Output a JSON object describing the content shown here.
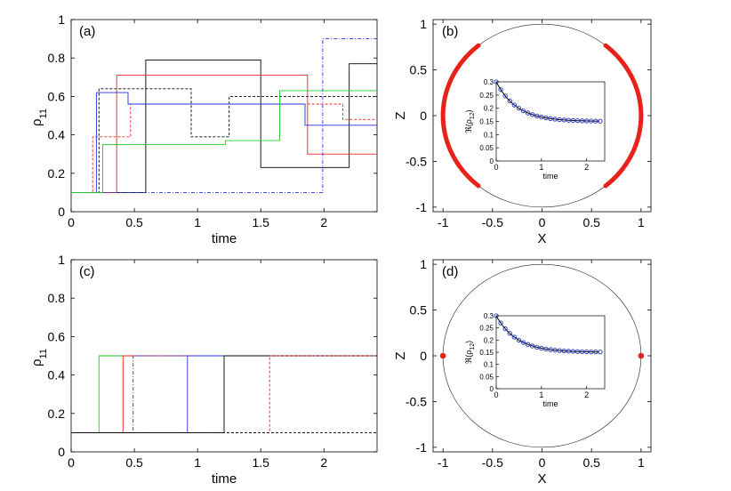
{
  "chart_data": [
    {
      "panel": "a",
      "type": "line",
      "step": true,
      "label": "(a)",
      "xlabel": "time",
      "ylabel": "ρ",
      "ylabel_sub": "11",
      "xlim": [
        0,
        2.42
      ],
      "ylim": [
        0,
        1
      ],
      "xticks": [
        0,
        0.5,
        1,
        1.5,
        2
      ],
      "xtick_labels": [
        "0",
        "0.5",
        "1",
        "1.5",
        "2"
      ],
      "yticks": [
        0,
        0.2,
        0.4,
        0.6,
        0.8,
        1
      ],
      "ytick_labels": [
        "0",
        "0.2",
        "0.4",
        "0.6",
        "0.8",
        "1"
      ],
      "series": [
        {
          "name": "black-solid",
          "color": "#000000",
          "dash": "",
          "x": [
            0,
            0.59,
            0.59,
            1.5,
            1.5,
            2.2,
            2.2,
            2.42
          ],
          "y": [
            0.1,
            0.1,
            0.79,
            0.79,
            0.23,
            0.23,
            0.77,
            0.77
          ]
        },
        {
          "name": "black-dashed",
          "color": "#000000",
          "dash": "3,2",
          "x": [
            0,
            0.22,
            0.22,
            0.95,
            0.95,
            1.25,
            1.25,
            2.42
          ],
          "y": [
            0.1,
            0.1,
            0.64,
            0.64,
            0.39,
            0.39,
            0.6,
            0.6
          ]
        },
        {
          "name": "red-solid",
          "color": "#ee2222",
          "dash": "",
          "x": [
            0,
            0.36,
            0.36,
            1.87,
            1.87,
            2.42
          ],
          "y": [
            0.1,
            0.1,
            0.71,
            0.71,
            0.3,
            0.3
          ]
        },
        {
          "name": "red-dashed",
          "color": "#ee2222",
          "dash": "3,2",
          "x": [
            0,
            0.17,
            0.17,
            0.47,
            0.47,
            2.15,
            2.15,
            2.42
          ],
          "y": [
            0.1,
            0.1,
            0.39,
            0.39,
            0.56,
            0.56,
            0.48,
            0.48
          ]
        },
        {
          "name": "blue-solid",
          "color": "#2233dd",
          "dash": "",
          "x": [
            0,
            0.2,
            0.2,
            0.45,
            0.45,
            1.85,
            1.85,
            2.42
          ],
          "y": [
            0.1,
            0.1,
            0.62,
            0.62,
            0.56,
            0.56,
            0.45,
            0.45
          ]
        },
        {
          "name": "blue-dashed",
          "color": "#2233dd",
          "dash": "4,2,1,2",
          "x": [
            0,
            1.99,
            1.99,
            2.42
          ],
          "y": [
            0.1,
            0.1,
            0.9,
            0.9
          ]
        },
        {
          "name": "green-solid",
          "color": "#22cc22",
          "dash": "",
          "x": [
            0,
            0.25,
            0.25,
            1.22,
            1.22,
            1.65,
            1.65,
            2.42
          ],
          "y": [
            0.1,
            0.1,
            0.35,
            0.35,
            0.37,
            0.37,
            0.63,
            0.63
          ]
        }
      ]
    },
    {
      "panel": "b",
      "type": "scatter",
      "label": "(b)",
      "xlabel": "X",
      "ylabel": "Z",
      "xlim": [
        -1.1,
        1.1
      ],
      "ylim": [
        -1.05,
        1.05
      ],
      "xticks": [
        -1,
        -0.5,
        0,
        0.5,
        1
      ],
      "xtick_labels": [
        "-1",
        "-0.5",
        "0",
        "0.5",
        "1"
      ],
      "yticks": [
        -1,
        -0.5,
        0,
        0.5,
        1
      ],
      "ytick_labels": [
        "-1",
        "-0.5",
        "0",
        "0.5",
        "1"
      ],
      "circle_radius": 1,
      "point_color": "#e8221a",
      "arcs_deg": [
        [
          -50,
          50
        ],
        [
          130,
          230
        ]
      ],
      "inset": {
        "xlabel": "time",
        "ylabel": "ℜ(ρ",
        "ylabel_sub": "12",
        "ylabel_close": ")",
        "xlim": [
          0,
          2.4
        ],
        "ylim": [
          0,
          0.3
        ],
        "xticks": [
          0,
          1,
          2
        ],
        "xtick_labels": [
          "0",
          "1",
          "2"
        ],
        "yticks": [
          0,
          0.05,
          0.1,
          0.15,
          0.2,
          0.25,
          0.3
        ],
        "ytick_labels": [
          "0",
          "0.05",
          "0.1",
          "0.15",
          "0.2",
          "0.25",
          "0.3"
        ],
        "curve": {
          "start": 0.3,
          "end": 0.15,
          "rate": 2.2
        },
        "markers_x": [
          0,
          0.1,
          0.2,
          0.3,
          0.4,
          0.5,
          0.6,
          0.7,
          0.8,
          0.9,
          1.0,
          1.1,
          1.2,
          1.3,
          1.4,
          1.5,
          1.6,
          1.7,
          1.8,
          1.9,
          2.0,
          2.1,
          2.2,
          2.3
        ]
      }
    },
    {
      "panel": "c",
      "type": "line",
      "step": true,
      "label": "(c)",
      "xlabel": "time",
      "ylabel": "ρ",
      "ylabel_sub": "11",
      "xlim": [
        0,
        2.42
      ],
      "ylim": [
        0,
        1
      ],
      "xticks": [
        0,
        0.5,
        1,
        1.5,
        2
      ],
      "xtick_labels": [
        "0",
        "0.5",
        "1",
        "1.5",
        "2"
      ],
      "yticks": [
        0,
        0.2,
        0.4,
        0.6,
        0.8,
        1
      ],
      "ytick_labels": [
        "0",
        "0.2",
        "0.4",
        "0.6",
        "0.8",
        "1"
      ],
      "series": [
        {
          "name": "green-solid",
          "color": "#22cc22",
          "dash": "",
          "x": [
            0,
            0.22,
            0.22,
            2.42
          ],
          "y": [
            0.1,
            0.1,
            0.5,
            0.5
          ]
        },
        {
          "name": "red-solid",
          "color": "#ee2222",
          "dash": "",
          "x": [
            0,
            0.41,
            0.41,
            2.42
          ],
          "y": [
            0.1,
            0.1,
            0.5,
            0.5
          ]
        },
        {
          "name": "blue-dashed",
          "color": "#2233dd",
          "dash": "4,2,1,2",
          "x": [
            0,
            0.49,
            0.49,
            2.42
          ],
          "y": [
            0.1,
            0.1,
            0.5,
            0.5
          ]
        },
        {
          "name": "blue-solid",
          "color": "#2233dd",
          "dash": "",
          "x": [
            0,
            0.92,
            0.92,
            2.42
          ],
          "y": [
            0.1,
            0.1,
            0.5,
            0.5
          ]
        },
        {
          "name": "black-solid",
          "color": "#000000",
          "dash": "",
          "x": [
            0,
            1.21,
            1.21,
            2.42
          ],
          "y": [
            0.1,
            0.1,
            0.5,
            0.5
          ]
        },
        {
          "name": "red-dashed",
          "color": "#ee2222",
          "dash": "3,2",
          "x": [
            0,
            1.57,
            1.57,
            2.42
          ],
          "y": [
            0.1,
            0.1,
            0.5,
            0.5
          ]
        },
        {
          "name": "black-dashed",
          "color": "#000000",
          "dash": "3,2",
          "x": [
            0,
            2.42
          ],
          "y": [
            0.1,
            0.1
          ]
        }
      ]
    },
    {
      "panel": "d",
      "type": "scatter",
      "label": "(d)",
      "xlabel": "X",
      "ylabel": "Z",
      "xlim": [
        -1.1,
        1.1
      ],
      "ylim": [
        -1.05,
        1.05
      ],
      "xticks": [
        -1,
        -0.5,
        0,
        0.5,
        1
      ],
      "xtick_labels": [
        "-1",
        "-0.5",
        "0",
        "0.5",
        "1"
      ],
      "yticks": [
        -1,
        -0.5,
        0,
        0.5,
        1
      ],
      "ytick_labels": [
        "-1",
        "-0.5",
        "0",
        "0.5",
        "1"
      ],
      "circle_radius": 1,
      "point_color": "#e8221a",
      "points": [
        [
          -1,
          0
        ],
        [
          1,
          0
        ]
      ],
      "inset": {
        "xlabel": "time",
        "ylabel": "ℜ(ρ",
        "ylabel_sub": "12",
        "ylabel_close": ")",
        "xlim": [
          0,
          2.4
        ],
        "ylim": [
          0,
          0.3
        ],
        "xticks": [
          0,
          1,
          2
        ],
        "xtick_labels": [
          "0",
          "1",
          "2"
        ],
        "yticks": [
          0,
          0.05,
          0.1,
          0.15,
          0.2,
          0.25,
          0.3
        ],
        "ytick_labels": [
          "0",
          "0.05",
          "0.1",
          "0.15",
          "0.2",
          "0.25",
          "0.3"
        ],
        "curve": {
          "start": 0.3,
          "end": 0.15,
          "rate": 2.2
        },
        "markers_x": [
          0,
          0.1,
          0.2,
          0.3,
          0.4,
          0.5,
          0.6,
          0.7,
          0.8,
          0.9,
          1.0,
          1.1,
          1.2,
          1.3,
          1.4,
          1.5,
          1.6,
          1.7,
          1.8,
          1.9,
          2.0,
          2.1,
          2.2,
          2.3
        ]
      }
    }
  ]
}
